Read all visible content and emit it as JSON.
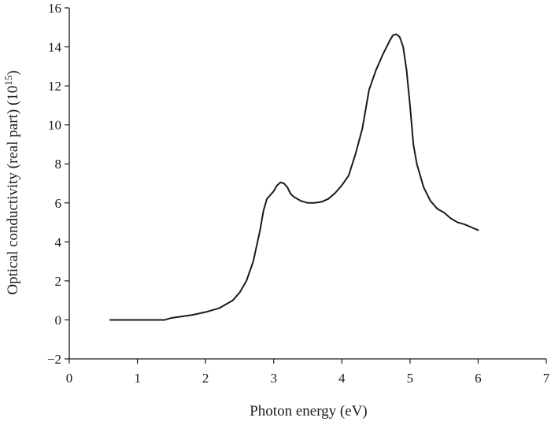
{
  "chart_data": {
    "type": "line",
    "xlabel": "Photon energy (eV)",
    "ylabel": "Optical conductivity (real part) (10",
    "ylabel_exponent": "15",
    "ylabel_suffix": ")",
    "xlim": [
      0,
      7
    ],
    "ylim": [
      -2,
      16
    ],
    "x_ticks": [
      "0",
      "1",
      "2",
      "3",
      "4",
      "5",
      "6",
      "7"
    ],
    "y_ticks": [
      "−2",
      "0",
      "2",
      "4",
      "6",
      "8",
      "10",
      "12",
      "14",
      "16"
    ],
    "x_tick_values": [
      0,
      1,
      2,
      3,
      4,
      5,
      6,
      7
    ],
    "y_tick_values": [
      -2,
      0,
      2,
      4,
      6,
      8,
      10,
      12,
      14,
      16
    ],
    "grid": false,
    "legend": "none",
    "line_color": "#1a1a1a",
    "series": [
      {
        "x": [
          0.6,
          1.0,
          1.2,
          1.4,
          1.5,
          1.6,
          1.8,
          2.0,
          2.2,
          2.4,
          2.5,
          2.6,
          2.7,
          2.8,
          2.85,
          2.9,
          2.95,
          3.0,
          3.05,
          3.1,
          3.15,
          3.2,
          3.25,
          3.3,
          3.4,
          3.5,
          3.6,
          3.7,
          3.8,
          3.9,
          4.0,
          4.1,
          4.2,
          4.3,
          4.4,
          4.5,
          4.6,
          4.7,
          4.75,
          4.8,
          4.85,
          4.9,
          4.95,
          5.0,
          5.05,
          5.1,
          5.2,
          5.3,
          5.4,
          5.5,
          5.6,
          5.7,
          5.8,
          5.9,
          6.0
        ],
        "y": [
          0,
          0,
          0,
          0,
          0.1,
          0.15,
          0.25,
          0.4,
          0.6,
          1.0,
          1.4,
          2.0,
          3.0,
          4.6,
          5.6,
          6.2,
          6.4,
          6.6,
          6.9,
          7.05,
          7.0,
          6.8,
          6.45,
          6.3,
          6.1,
          6.0,
          6.0,
          6.05,
          6.2,
          6.5,
          6.9,
          7.4,
          8.5,
          9.8,
          11.8,
          12.8,
          13.6,
          14.3,
          14.6,
          14.65,
          14.5,
          14.0,
          12.8,
          11.0,
          9.0,
          8.0,
          6.8,
          6.1,
          5.7,
          5.5,
          5.2,
          5.0,
          4.9,
          4.75,
          4.6
        ]
      }
    ]
  }
}
